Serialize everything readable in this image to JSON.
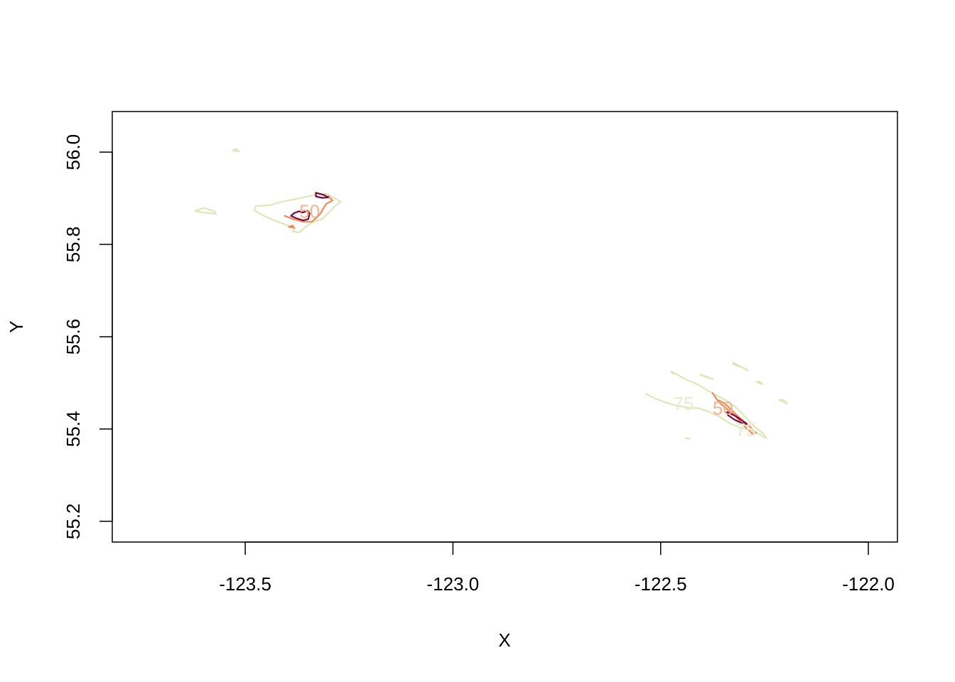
{
  "chart_data": {
    "type": "contour",
    "xlabel": "X",
    "ylabel": "Y",
    "xlim": [
      -123.82,
      -121.93
    ],
    "ylim": [
      55.155,
      56.088
    ],
    "x_ticks": [
      -123.5,
      -123.0,
      -122.5,
      -122.0
    ],
    "x_tick_labels": [
      "-123.5",
      "-123.0",
      "-122.5",
      "-122.0"
    ],
    "y_ticks": [
      55.2,
      55.4,
      55.6,
      55.8,
      56.0
    ],
    "y_tick_labels": [
      "55.2",
      "55.4",
      "55.6",
      "55.8",
      "56.0"
    ],
    "grid": false,
    "levels": [
      {
        "level": 25,
        "color": "#7a0a3c"
      },
      {
        "level": 50,
        "color": "#ee8a5a"
      },
      {
        "level": 75,
        "color": "#dfe6b8"
      }
    ],
    "contour_labels": [
      {
        "text": "50",
        "x": -123.345,
        "y": 55.872,
        "color": "#f2b48c"
      },
      {
        "text": "75",
        "x": -122.445,
        "y": 55.455,
        "color": "#e7ebce"
      },
      {
        "text": "50",
        "x": -122.35,
        "y": 55.445,
        "color": "#f2b48c"
      },
      {
        "text": "75",
        "x": -122.295,
        "y": 55.398,
        "color": "#e7ebce"
      }
    ],
    "contours": [
      {
        "level": 75,
        "closed": true,
        "points": [
          [
            -123.62,
            55.873
          ],
          [
            -123.6,
            55.879
          ],
          [
            -123.575,
            55.872
          ],
          [
            -123.57,
            55.866
          ],
          [
            -123.59,
            55.868
          ],
          [
            -123.61,
            55.87
          ]
        ]
      },
      {
        "level": 75,
        "closed": true,
        "points": [
          [
            -123.53,
            56.004
          ],
          [
            -123.515,
            56.002
          ],
          [
            -123.522,
            56.007
          ]
        ]
      },
      {
        "level": 75,
        "closed": true,
        "points": [
          [
            -123.475,
            55.883
          ],
          [
            -123.44,
            55.885
          ],
          [
            -123.41,
            55.893
          ],
          [
            -123.38,
            55.898
          ],
          [
            -123.355,
            55.903
          ],
          [
            -123.33,
            55.908
          ],
          [
            -123.305,
            55.91
          ],
          [
            -123.285,
            55.9
          ],
          [
            -123.27,
            55.893
          ],
          [
            -123.285,
            55.882
          ],
          [
            -123.3,
            55.868
          ],
          [
            -123.315,
            55.855
          ],
          [
            -123.34,
            55.847
          ],
          [
            -123.355,
            55.838
          ],
          [
            -123.37,
            55.826
          ],
          [
            -123.385,
            55.828
          ],
          [
            -123.38,
            55.835
          ],
          [
            -123.4,
            55.842
          ],
          [
            -123.43,
            55.852
          ],
          [
            -123.46,
            55.864
          ],
          [
            -123.478,
            55.874
          ]
        ]
      },
      {
        "level": 50,
        "closed": false,
        "points": [
          [
            -123.405,
            55.862
          ],
          [
            -123.385,
            55.855
          ],
          [
            -123.36,
            55.849
          ],
          [
            -123.34,
            55.849
          ],
          [
            -123.328,
            55.858
          ],
          [
            -123.318,
            55.868
          ],
          [
            -123.312,
            55.878
          ],
          [
            -123.305,
            55.888
          ],
          [
            -123.29,
            55.895
          ],
          [
            -123.3,
            55.905
          ]
        ]
      },
      {
        "level": 50,
        "closed": true,
        "points": [
          [
            -123.395,
            55.838
          ],
          [
            -123.382,
            55.836
          ],
          [
            -123.386,
            55.841
          ]
        ]
      },
      {
        "level": 25,
        "closed": true,
        "points": [
          [
            -123.39,
            55.862
          ],
          [
            -123.378,
            55.857
          ],
          [
            -123.36,
            55.852
          ],
          [
            -123.348,
            55.855
          ],
          [
            -123.345,
            55.867
          ],
          [
            -123.35,
            55.873
          ],
          [
            -123.362,
            55.869
          ],
          [
            -123.37,
            55.872
          ],
          [
            -123.382,
            55.868
          ]
        ]
      },
      {
        "level": 25,
        "closed": true,
        "points": [
          [
            -123.33,
            55.912
          ],
          [
            -123.31,
            55.907
          ],
          [
            -123.3,
            55.902
          ],
          [
            -123.315,
            55.901
          ],
          [
            -123.33,
            55.904
          ]
        ]
      },
      {
        "level": 75,
        "closed": false,
        "points": [
          [
            -122.535,
            55.476
          ],
          [
            -122.515,
            55.467
          ],
          [
            -122.49,
            55.458
          ],
          [
            -122.46,
            55.45
          ],
          [
            -122.43,
            55.446
          ],
          [
            -122.41,
            55.445
          ],
          [
            -122.385,
            55.438
          ],
          [
            -122.36,
            55.428
          ],
          [
            -122.335,
            55.413
          ],
          [
            -122.31,
            55.403
          ],
          [
            -122.285,
            55.398
          ],
          [
            -122.26,
            55.387
          ],
          [
            -122.245,
            55.38
          ],
          [
            -122.255,
            55.392
          ],
          [
            -122.27,
            55.402
          ],
          [
            -122.285,
            55.415
          ],
          [
            -122.3,
            55.43
          ],
          [
            -122.32,
            55.448
          ],
          [
            -122.345,
            55.463
          ],
          [
            -122.37,
            55.475
          ],
          [
            -122.39,
            55.485
          ],
          [
            -122.41,
            55.496
          ],
          [
            -122.44,
            55.508
          ],
          [
            -122.465,
            55.52
          ],
          [
            -122.475,
            55.525
          ],
          [
            -122.47,
            55.52
          ]
        ]
      },
      {
        "level": 75,
        "closed": true,
        "points": [
          [
            -122.405,
            55.518
          ],
          [
            -122.385,
            55.512
          ],
          [
            -122.375,
            55.508
          ],
          [
            -122.395,
            55.514
          ]
        ]
      },
      {
        "level": 75,
        "closed": true,
        "points": [
          [
            -122.325,
            55.54
          ],
          [
            -122.3,
            55.532
          ],
          [
            -122.29,
            55.527
          ],
          [
            -122.31,
            55.536
          ],
          [
            -122.325,
            55.544
          ]
        ]
      },
      {
        "level": 75,
        "closed": true,
        "points": [
          [
            -122.27,
            55.502
          ],
          [
            -122.255,
            55.497
          ],
          [
            -122.262,
            55.503
          ]
        ]
      },
      {
        "level": 75,
        "closed": true,
        "points": [
          [
            -122.215,
            55.463
          ],
          [
            -122.195,
            55.455
          ],
          [
            -122.205,
            55.463
          ]
        ]
      },
      {
        "level": 75,
        "closed": true,
        "points": [
          [
            -122.44,
            55.38
          ],
          [
            -122.43,
            55.379
          ]
        ]
      },
      {
        "level": 50,
        "closed": false,
        "points": [
          [
            -122.375,
            55.478
          ],
          [
            -122.36,
            55.458
          ],
          [
            -122.34,
            55.443
          ],
          [
            -122.32,
            55.428
          ],
          [
            -122.3,
            55.408
          ],
          [
            -122.28,
            55.39
          ],
          [
            -122.27,
            55.392
          ],
          [
            -122.285,
            55.405
          ],
          [
            -122.305,
            55.42
          ],
          [
            -122.325,
            55.437
          ],
          [
            -122.345,
            55.455
          ],
          [
            -122.36,
            55.462
          ]
        ]
      },
      {
        "level": 25,
        "closed": true,
        "points": [
          [
            -122.34,
            55.437
          ],
          [
            -122.32,
            55.428
          ],
          [
            -122.3,
            55.416
          ],
          [
            -122.29,
            55.41
          ],
          [
            -122.305,
            55.413
          ],
          [
            -122.322,
            55.42
          ],
          [
            -122.338,
            55.43
          ]
        ]
      }
    ]
  }
}
